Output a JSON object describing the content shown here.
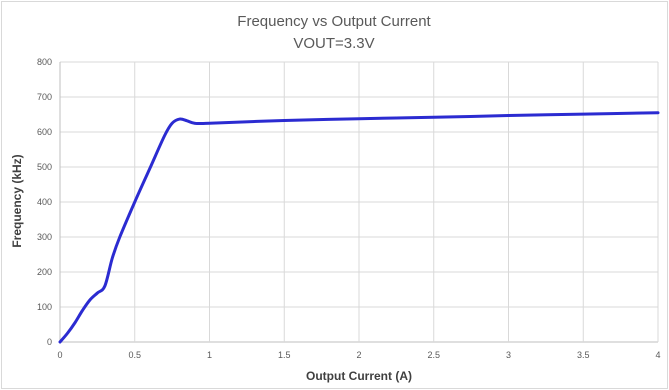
{
  "chart_data": {
    "type": "line",
    "title": "Frequency vs Output Current",
    "subtitle": "VOUT=3.3V",
    "xlabel": "Output Current (A)",
    "ylabel": "Frequency (kHz)",
    "xlim": [
      0,
      4
    ],
    "ylim": [
      0,
      800
    ],
    "xticks": [
      "0",
      "0.5",
      "1",
      "1.5",
      "2",
      "2.5",
      "3",
      "3.5",
      "4"
    ],
    "yticks": [
      "0",
      "100",
      "200",
      "300",
      "400",
      "500",
      "600",
      "700",
      "800"
    ],
    "grid": true,
    "legend": "none",
    "series": [
      {
        "color": "#2b2bd1",
        "x": [
          0,
          0.05,
          0.1,
          0.15,
          0.2,
          0.25,
          0.3,
          0.35,
          0.4,
          0.5,
          0.6,
          0.7,
          0.75,
          0.8,
          0.85,
          0.9,
          1.0,
          1.5,
          2.0,
          2.5,
          3.0,
          3.5,
          4.0
        ],
        "y": [
          0,
          25,
          55,
          90,
          120,
          140,
          160,
          240,
          300,
          400,
          495,
          590,
          625,
          637,
          632,
          625,
          625,
          633,
          638,
          642,
          647,
          651,
          655
        ]
      }
    ]
  }
}
